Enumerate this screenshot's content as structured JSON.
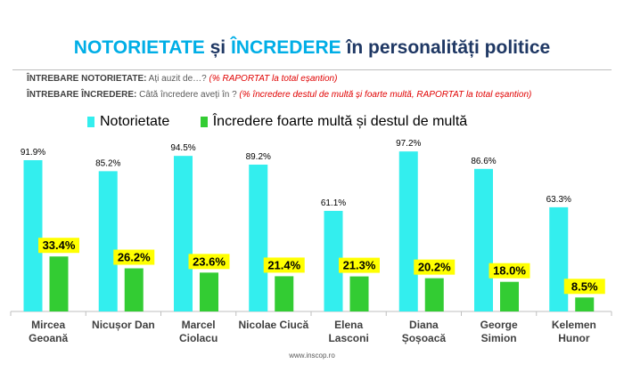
{
  "title": {
    "part1": "NOTORIETATE",
    "part2": " și ",
    "part3": "ÎNCREDERE",
    "part4": " în personalități politice"
  },
  "questions": [
    {
      "label": "ÎNTREBARE NOTORIETATE:",
      "text": " Ați auzit de…? ",
      "note": "(% RAPORTAT la total eșantion)"
    },
    {
      "label": "ÎNTREBARE ÎNCREDERE:",
      "text": " Câtă încredere aveți în ? ",
      "note": "(% încredere destul de multă și foarte multă, RAPORTAT la total eșantion)"
    }
  ],
  "legend": [
    {
      "label": "Notorietate",
      "color": "#33eeee"
    },
    {
      "label": "Încredere foarte multă și destul de multă",
      "color": "#33cc33"
    }
  ],
  "source": "www.inscop.ro",
  "chart_data": {
    "type": "bar",
    "categories": [
      [
        "Mircea",
        "Geoană"
      ],
      [
        "Nicușor Dan"
      ],
      [
        "Marcel",
        "Ciolacu"
      ],
      [
        "Nicolae Ciucă"
      ],
      [
        "Elena",
        "Lasconi"
      ],
      [
        "Diana",
        "Șoșoacă"
      ],
      [
        "George",
        "Simion"
      ],
      [
        "Kelemen",
        "Hunor"
      ]
    ],
    "series": [
      {
        "name": "Notorietate",
        "color": "#33eeee",
        "values": [
          91.9,
          85.2,
          94.5,
          89.2,
          61.1,
          97.2,
          86.6,
          63.3
        ],
        "labels": [
          "91.9%",
          "85.2%",
          "94.5%",
          "89.2%",
          "61.1%",
          "97.2%",
          "86.6%",
          "63.3%"
        ]
      },
      {
        "name": "Încredere foarte multă și destul de multă",
        "color": "#33cc33",
        "values": [
          33.4,
          26.2,
          23.6,
          21.4,
          21.3,
          20.2,
          18.0,
          8.5
        ],
        "labels": [
          "33.4%",
          "26.2%",
          "23.6%",
          "21.4%",
          "21.3%",
          "20.2%",
          "18.0%",
          "8.5%"
        ]
      }
    ],
    "label_highlight": "#ffff00",
    "ylim": [
      0,
      100
    ]
  }
}
